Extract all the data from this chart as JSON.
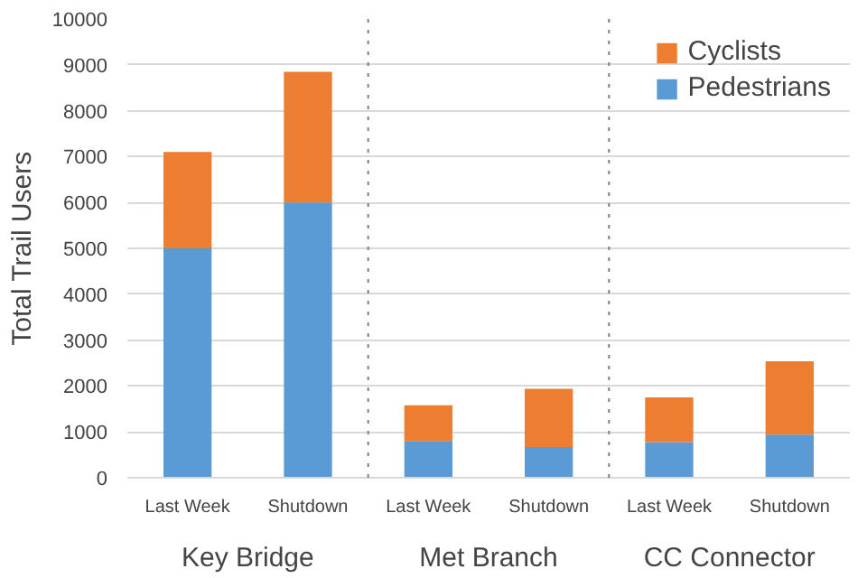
{
  "chart_data": {
    "type": "bar",
    "stacked": true,
    "ylabel": "Total Trail Users",
    "categories": [
      "Last Week",
      "Shutdown",
      "Last Week",
      "Shutdown",
      "Last Week",
      "Shutdown"
    ],
    "series": [
      {
        "name": "Pedestrians",
        "color": "#5b9bd5",
        "values": [
          5000,
          6000,
          800,
          670,
          780,
          940
        ]
      },
      {
        "name": "Cyclists",
        "color": "#ed7d31",
        "values": [
          2100,
          2850,
          780,
          1270,
          970,
          1600
        ]
      }
    ],
    "ylim": [
      0,
      10000
    ],
    "yticks": [
      0,
      1000,
      2000,
      3000,
      4000,
      5000,
      6000,
      7000,
      8000,
      9000,
      10000
    ],
    "grid": "y",
    "legend": "top right",
    "annotations": [
      "Key Bridge",
      "Met Branch",
      "CC Connector"
    ]
  }
}
